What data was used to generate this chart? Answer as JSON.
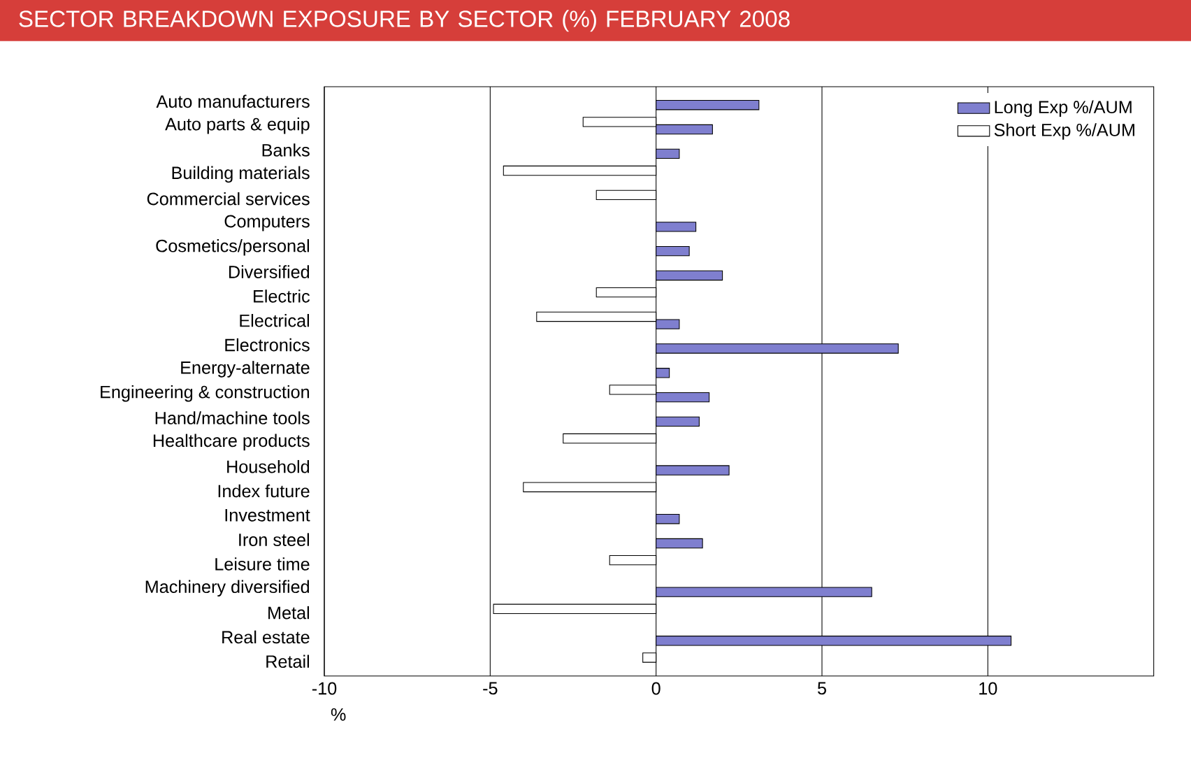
{
  "chart_data": {
    "type": "bar",
    "orientation": "horizontal",
    "title": "SECTOR BREAKDOWN EXPOSURE BY SECTOR (%) FEBRUARY 2008",
    "xlabel": "%",
    "categories": [
      "Auto manufacturers",
      "Auto parts & equip",
      "Banks",
      "Building materials",
      "Commercial services",
      "Computers",
      "Cosmetics/personal",
      "Diversified",
      "Electric",
      "Electrical",
      "Electronics",
      "Energy-alternate",
      "Engineering & construction",
      "Hand/machine tools",
      "Healthcare products",
      "Household",
      "Index future",
      "Investment",
      "Iron steel",
      "Leisure time",
      "Machinery diversified",
      "Metal",
      "Real estate",
      "Retail"
    ],
    "series": [
      {
        "name": "Long Exp %/AUM",
        "color": "#7f7fcf",
        "values": [
          3.1,
          1.7,
          0.7,
          null,
          null,
          1.2,
          1.0,
          2.0,
          null,
          0.7,
          7.3,
          0.4,
          1.6,
          1.3,
          null,
          2.2,
          null,
          0.7,
          1.4,
          null,
          6.5,
          null,
          10.7,
          null
        ]
      },
      {
        "name": "Short Exp %/AUM",
        "color": "#ffffff",
        "values": [
          null,
          -2.2,
          null,
          -4.6,
          -1.8,
          null,
          null,
          null,
          -1.8,
          -3.6,
          null,
          null,
          -1.4,
          null,
          -2.8,
          null,
          -4.0,
          null,
          null,
          -1.4,
          null,
          -4.9,
          null,
          -0.4
        ]
      }
    ],
    "xlim": [
      -10,
      15
    ],
    "xticks": [
      -10,
      -5,
      0,
      5,
      10
    ],
    "grid": "x",
    "legend": "top right"
  }
}
